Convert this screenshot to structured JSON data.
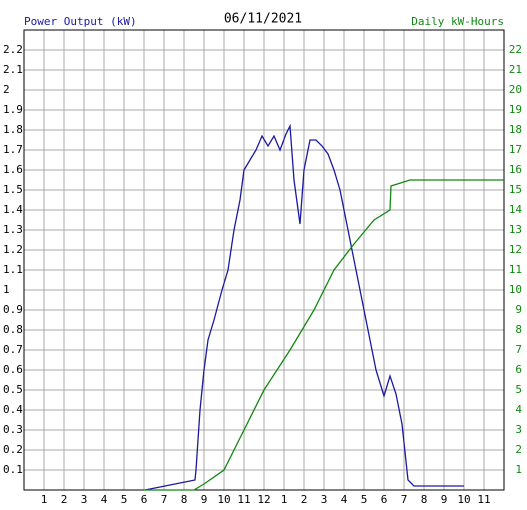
{
  "chart_data": {
    "type": "line",
    "title": "06/11/2021",
    "ylabel": "Power Output (kW)",
    "y2label": "Daily kW-Hours",
    "ylabel_color": "#1a1aa0",
    "y2label_color": "#118811",
    "xlim": [
      0,
      24
    ],
    "xticks": [
      1,
      2,
      3,
      4,
      5,
      6,
      7,
      8,
      9,
      10,
      11,
      12,
      {
        "value": 13,
        "label": "1"
      },
      {
        "value": 14,
        "label": "2"
      },
      {
        "value": 15,
        "label": "3"
      },
      {
        "value": 16,
        "label": "4"
      },
      {
        "value": 17,
        "label": "5"
      },
      {
        "value": 18,
        "label": "6"
      },
      {
        "value": 19,
        "label": "7"
      },
      {
        "value": 20,
        "label": "8"
      },
      {
        "value": 21,
        "label": "9"
      },
      {
        "value": 22,
        "label": "10"
      },
      {
        "value": 23,
        "label": "11"
      }
    ],
    "ylim": [
      0,
      2.3
    ],
    "yticks": [
      0.1,
      0.2,
      0.3,
      0.4,
      0.5,
      0.6,
      0.7,
      0.8,
      0.9,
      1.0,
      1.1,
      1.2,
      1.3,
      1.4,
      1.5,
      1.6,
      1.7,
      1.8,
      1.9,
      2.0,
      2.1,
      2.2
    ],
    "y2lim": [
      0,
      23
    ],
    "y2ticks": [
      1,
      2,
      3,
      4,
      5,
      6,
      7,
      8,
      9,
      10,
      11,
      12,
      13,
      14,
      15,
      16,
      17,
      18,
      19,
      20,
      21,
      22
    ],
    "grid": true,
    "series": [
      {
        "color": "#1a1aa0",
        "x": [
          6.05,
          8.55,
          8.6,
          8.8,
          9.0,
          9.2,
          9.5,
          9.9,
          10.2,
          10.5,
          10.8,
          11.0,
          11.3,
          11.6,
          11.9,
          12.2,
          12.5,
          12.8,
          13.1,
          13.3,
          13.5,
          13.8,
          14.0,
          14.3,
          14.6,
          14.9,
          15.2,
          15.5,
          15.8,
          16.1,
          16.4,
          16.7,
          17.0,
          17.3,
          17.6,
          18.0,
          18.3,
          18.6,
          18.9,
          19.2,
          19.5,
          22.0
        ],
        "values": [
          0,
          0.05,
          0.1,
          0.4,
          0.6,
          0.75,
          0.85,
          1.0,
          1.1,
          1.3,
          1.45,
          1.6,
          1.65,
          1.7,
          1.77,
          1.72,
          1.77,
          1.7,
          1.78,
          1.82,
          1.55,
          1.33,
          1.6,
          1.75,
          1.75,
          1.72,
          1.68,
          1.6,
          1.5,
          1.35,
          1.2,
          1.05,
          0.9,
          0.75,
          0.6,
          0.47,
          0.57,
          0.48,
          0.33,
          0.05,
          0.02,
          0.02
        ]
      },
      {
        "color": "#118811",
        "axis": "y2",
        "x": [
          6.0,
          8.5,
          9.0,
          10.0,
          11.0,
          12.0,
          13.3,
          14.5,
          15.5,
          16.5,
          17.5,
          18.3,
          18.35,
          19.3,
          24.0
        ],
        "values": [
          0,
          0,
          0.3,
          1.0,
          3.0,
          5.0,
          7.0,
          9.0,
          11.0,
          12.3,
          13.5,
          14.0,
          15.2,
          15.5,
          15.5
        ]
      }
    ]
  }
}
